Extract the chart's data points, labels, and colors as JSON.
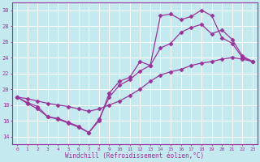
{
  "xlabel": "Windchill (Refroidissement éolien,°C)",
  "ylabel": "",
  "xlim": [
    -0.5,
    23.5
  ],
  "ylim": [
    13,
    31
  ],
  "xticks": [
    0,
    1,
    2,
    3,
    4,
    5,
    6,
    7,
    8,
    9,
    10,
    11,
    12,
    13,
    14,
    15,
    16,
    17,
    18,
    19,
    20,
    21,
    22,
    23
  ],
  "yticks": [
    14,
    16,
    18,
    20,
    22,
    24,
    26,
    28,
    30
  ],
  "background_color": "#c4eaf0",
  "grid_color": "#b0dce8",
  "line_color": "#993399",
  "line1_x": [
    0,
    1,
    2,
    3,
    4,
    5,
    6,
    7,
    8,
    9,
    10,
    11,
    12,
    13,
    14,
    15,
    16,
    17,
    18,
    19,
    20,
    21,
    22,
    23
  ],
  "line1_y": [
    19.0,
    18.3,
    17.8,
    16.5,
    16.3,
    15.8,
    15.3,
    14.5,
    16.0,
    19.5,
    21.0,
    21.5,
    23.5,
    23.0,
    29.3,
    29.5,
    28.8,
    29.2,
    30.0,
    29.3,
    26.5,
    25.8,
    24.0,
    23.5
  ],
  "line2_x": [
    0,
    1,
    2,
    3,
    4,
    5,
    6,
    7,
    8,
    9,
    10,
    11,
    12,
    13,
    14,
    15,
    16,
    17,
    18,
    19,
    20,
    21,
    22,
    23
  ],
  "line2_y": [
    19.0,
    18.2,
    17.5,
    16.5,
    16.2,
    15.7,
    15.2,
    14.5,
    16.2,
    19.0,
    20.5,
    21.2,
    22.3,
    23.0,
    25.2,
    25.8,
    27.2,
    27.8,
    28.2,
    27.0,
    27.5,
    26.3,
    24.2,
    23.5
  ],
  "line3_x": [
    0,
    1,
    2,
    3,
    4,
    5,
    6,
    7,
    8,
    9,
    10,
    11,
    12,
    13,
    14,
    15,
    16,
    17,
    18,
    19,
    20,
    21,
    22,
    23
  ],
  "line3_y": [
    19.0,
    18.8,
    18.5,
    18.2,
    18.0,
    17.8,
    17.5,
    17.2,
    17.5,
    18.0,
    18.5,
    19.2,
    20.0,
    21.0,
    21.8,
    22.2,
    22.5,
    23.0,
    23.3,
    23.5,
    23.8,
    24.0,
    23.8,
    23.5
  ]
}
